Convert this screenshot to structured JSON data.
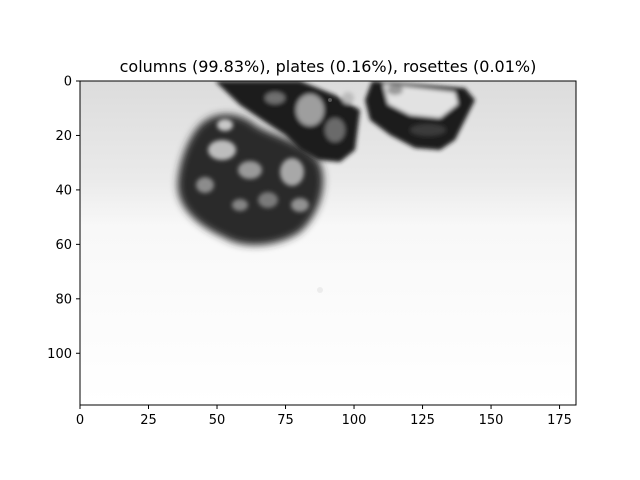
{
  "figure": {
    "title": "columns (99.83%), plates (0.16%), rosettes (0.01%)"
  },
  "image": {
    "content": "grayscale microscope image of an ice crystal cluster",
    "colormap": "gray",
    "x_extent": [
      0,
      181
    ],
    "y_extent": [
      0,
      119
    ],
    "y_axis_inverted": true
  },
  "chart_data": {
    "type": "heatmap",
    "title": "columns (99.83%), plates (0.16%), rosettes (0.01%)",
    "xlabel": "",
    "ylabel": "",
    "xlim": [
      0,
      181
    ],
    "ylim": [
      119,
      0
    ],
    "x_ticks": [
      0,
      25,
      50,
      75,
      100,
      125,
      150,
      175
    ],
    "y_ticks": [
      0,
      20,
      40,
      60,
      80,
      100
    ],
    "grid": false
  },
  "colors": {
    "axes_frame": "#000000",
    "background": "#ffffff"
  }
}
